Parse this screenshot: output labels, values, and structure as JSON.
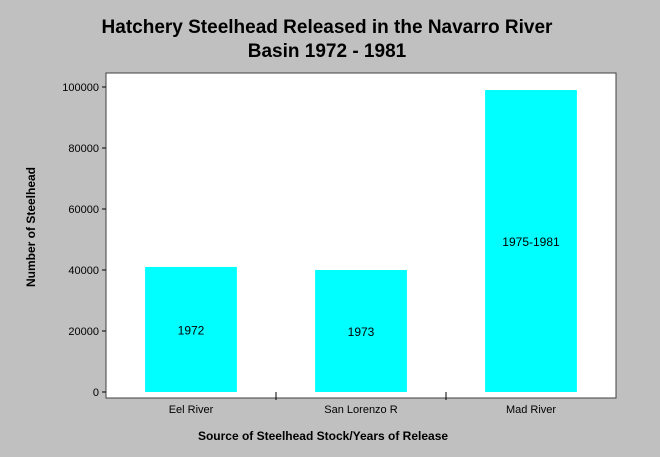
{
  "chart_data": {
    "type": "bar",
    "title_lines": [
      "Hatchery Steelhead Released in the Navarro River",
      "Basin 1972 - 1981"
    ],
    "xlabel": "Source of Steelhead Stock/Years of Release",
    "ylabel": "Number of Steelhead",
    "categories": [
      "Eel River",
      "San Lorenzo R",
      "Mad River"
    ],
    "values": [
      41000,
      40000,
      99000
    ],
    "bar_labels": [
      "1972",
      "1973",
      "1975-1981"
    ],
    "ylim": [
      0,
      100000
    ],
    "yticks": [
      0,
      20000,
      40000,
      60000,
      80000,
      100000
    ],
    "ytick_labels": [
      "0",
      "20000",
      "40000",
      "60000",
      "80000",
      "100000"
    ],
    "grid": false,
    "legend": "none",
    "colors": {
      "background": "#c0c0c0",
      "plot_area": "#ffffff",
      "bar": "#00ffff"
    }
  }
}
